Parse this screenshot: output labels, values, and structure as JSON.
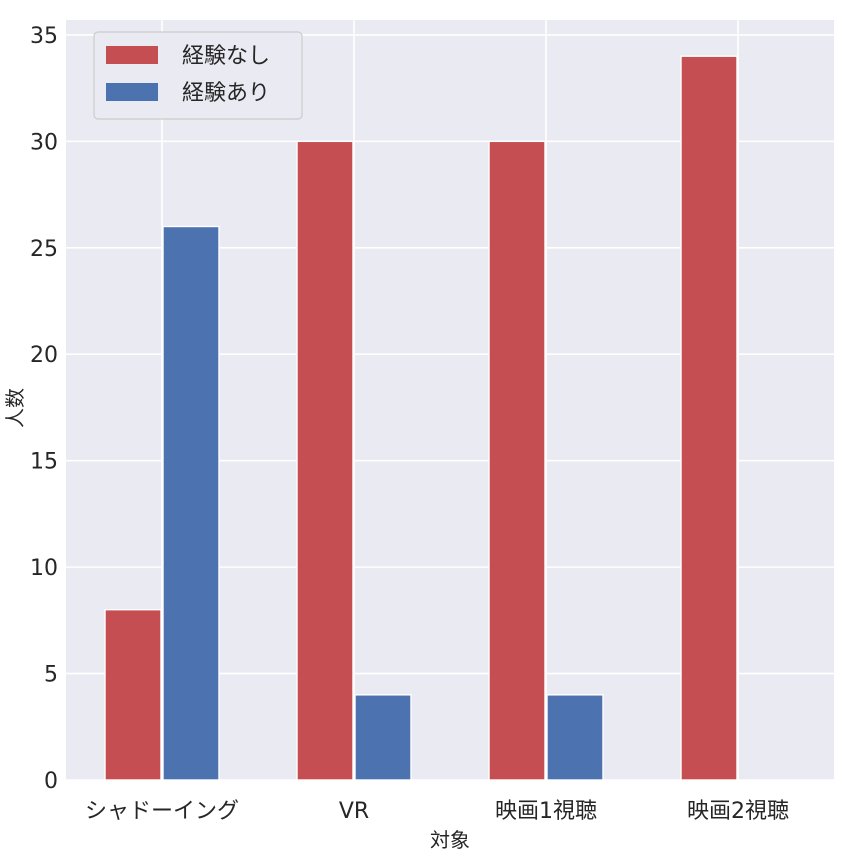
{
  "chart_data": {
    "type": "bar",
    "categories": [
      "シャドーイング",
      "VR",
      "映画1視聴",
      "映画2視聴"
    ],
    "series": [
      {
        "name": "経験なし",
        "values": [
          8,
          30,
          30,
          34
        ],
        "color": "#c44e52"
      },
      {
        "name": "経験あり",
        "values": [
          26,
          4,
          4,
          0
        ],
        "color": "#4c72b0"
      }
    ],
    "xlabel": "対象",
    "ylabel": "人数",
    "ylim": [
      0,
      35.7
    ],
    "yticks": [
      0,
      5,
      10,
      15,
      20,
      25,
      30,
      35
    ],
    "grid": true,
    "legend_position": "top-left",
    "background": "#eaeaf2"
  }
}
